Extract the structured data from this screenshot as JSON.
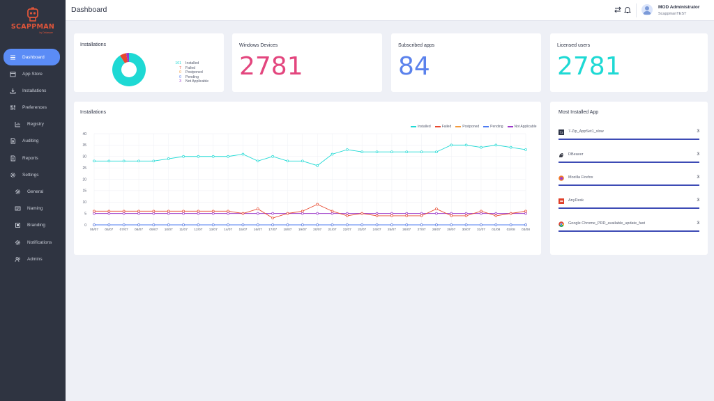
{
  "app": {
    "name": "SCAPPMAN",
    "tagline": "by Delaware"
  },
  "sidebar": {
    "items": [
      {
        "label": "Dashboard",
        "icon": "dashboard-icon",
        "active": true
      },
      {
        "label": "App Store",
        "icon": "store-icon"
      },
      {
        "label": "Installations",
        "icon": "download-icon"
      },
      {
        "label": "Preferences",
        "icon": "preferences-icon"
      },
      {
        "label": "Registry",
        "icon": "registry-icon",
        "sub": true
      },
      {
        "label": "Auditing",
        "icon": "auditing-icon"
      },
      {
        "label": "Reports",
        "icon": "reports-icon"
      },
      {
        "label": "Settings",
        "icon": "settings-icon"
      },
      {
        "label": "General",
        "icon": "general-icon",
        "sub": true
      },
      {
        "label": "Naming",
        "icon": "naming-icon",
        "sub": true
      },
      {
        "label": "Branding",
        "icon": "branding-icon",
        "sub": true
      },
      {
        "label": "Notifications",
        "icon": "notifications-icon",
        "sub": true
      },
      {
        "label": "Admins",
        "icon": "admins-icon",
        "sub": true
      }
    ]
  },
  "header": {
    "title": "Dashboard",
    "user_name": "MOD Administrator",
    "user_org": "ScappmanTEST"
  },
  "stats": {
    "installations": {
      "title": "Installations",
      "legend": [
        {
          "value": "101",
          "label": "Installed",
          "color": "#1ed9d4"
        },
        {
          "value": "7",
          "label": "Failed",
          "color": "#e8482e"
        },
        {
          "value": "0",
          "label": "Postponed",
          "color": "#f39a3b"
        },
        {
          "value": "0",
          "label": "Pending",
          "color": "#4e7bf2"
        },
        {
          "value": "3",
          "label": "Not Applicable",
          "color": "#9b37c9"
        }
      ]
    },
    "windows_devices": {
      "title": "Windows Devices",
      "value": "2781",
      "color": "#e3467e"
    },
    "subscribed_apps": {
      "title": "Subscribed apps",
      "value": "84",
      "color": "#5b82ec"
    },
    "licensed_users": {
      "title": "Licensed users",
      "value": "2781",
      "color": "#1ed9d4"
    }
  },
  "chart_data": {
    "type": "line",
    "title": "Installations",
    "categories": [
      "05/07",
      "06/07",
      "07/07",
      "08/07",
      "09/07",
      "10/07",
      "11/07",
      "12/07",
      "13/07",
      "14/07",
      "15/07",
      "16/07",
      "17/07",
      "18/07",
      "19/07",
      "20/07",
      "21/07",
      "22/07",
      "23/07",
      "24/07",
      "25/07",
      "26/07",
      "27/07",
      "28/07",
      "29/07",
      "30/07",
      "31/07",
      "01/08",
      "02/08",
      "03/08"
    ],
    "ylim": [
      0,
      40
    ],
    "yticks": [
      "0",
      "5",
      "10",
      "15",
      "20",
      "25",
      "30",
      "35",
      "40"
    ],
    "grid": true,
    "legend_position": "top-right",
    "series": [
      {
        "name": "Installed",
        "color": "#1ed9d4",
        "values": [
          28,
          28,
          28,
          28,
          28,
          29,
          30,
          30,
          30,
          30,
          31,
          28,
          30,
          28,
          28,
          26,
          31,
          33,
          32,
          32,
          32,
          32,
          32,
          32,
          35,
          35,
          34,
          35,
          34,
          33
        ]
      },
      {
        "name": "Failed",
        "color": "#e8482e",
        "values": [
          6,
          6,
          6,
          6,
          6,
          6,
          6,
          6,
          6,
          6,
          5,
          7,
          3,
          5,
          6,
          9,
          6,
          4,
          5,
          4,
          4,
          4,
          4,
          7,
          4,
          4,
          6,
          4,
          5,
          6
        ]
      },
      {
        "name": "Postponed",
        "color": "#f39a3b",
        "values": [
          0,
          0,
          0,
          0,
          0,
          0,
          0,
          0,
          0,
          0,
          0,
          0,
          0,
          0,
          0,
          0,
          0,
          0,
          0,
          0,
          0,
          0,
          0,
          0,
          0,
          0,
          0,
          0,
          0,
          0
        ]
      },
      {
        "name": "Pending",
        "color": "#4e7bf2",
        "values": [
          0,
          0,
          0,
          0,
          0,
          0,
          0,
          0,
          0,
          0,
          0,
          0,
          0,
          0,
          0,
          0,
          0,
          0,
          0,
          0,
          0,
          0,
          0,
          0,
          0,
          0,
          0,
          0,
          0,
          0
        ]
      },
      {
        "name": "Not Applicable",
        "color": "#9b37c9",
        "values": [
          5,
          5,
          5,
          5,
          5,
          5,
          5,
          5,
          5,
          5,
          5,
          5,
          5,
          5,
          5,
          5,
          5,
          5,
          5,
          5,
          5,
          5,
          5,
          5,
          5,
          5,
          5,
          5,
          5,
          5
        ]
      }
    ]
  },
  "most_installed": {
    "title": "Most Installed App",
    "apps": [
      {
        "name": "7-Zip_AppSet1_slow",
        "count": "3",
        "icon": "7zip-icon"
      },
      {
        "name": "DBeaver",
        "count": "3",
        "icon": "dbeaver-icon"
      },
      {
        "name": "Mozilla Firefox",
        "count": "3",
        "icon": "firefox-icon"
      },
      {
        "name": "AnyDesk",
        "count": "3",
        "icon": "anydesk-icon"
      },
      {
        "name": "Google Chrome_PRD_available_update_fast",
        "count": "3",
        "icon": "chrome-icon"
      }
    ]
  }
}
